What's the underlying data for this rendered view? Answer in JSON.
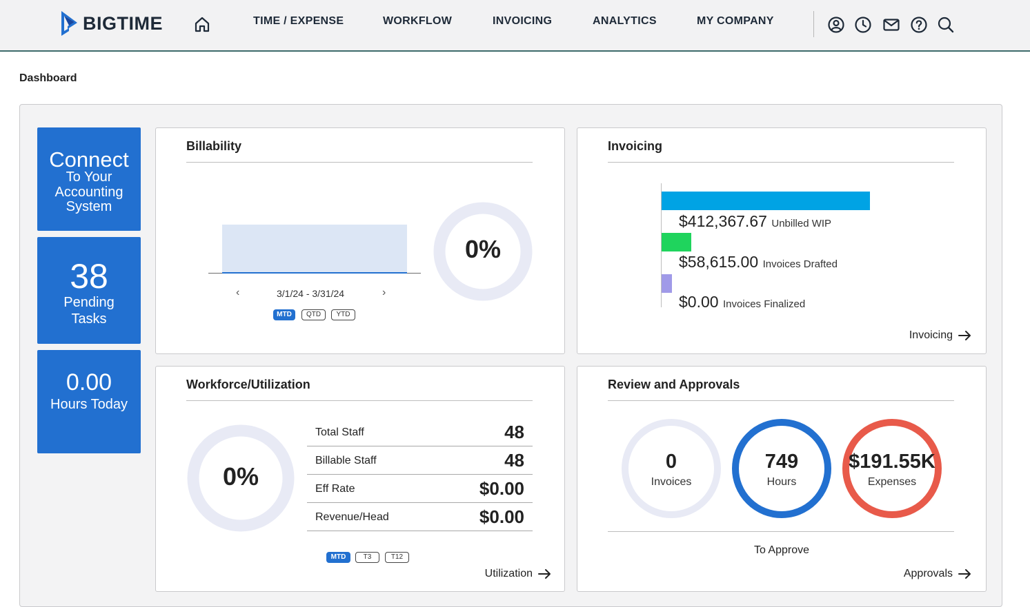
{
  "brand": {
    "name": "BIGTIME"
  },
  "nav": {
    "items": [
      "TIME / EXPENSE",
      "WORKFLOW",
      "INVOICING",
      "ANALYTICS",
      "MY COMPANY"
    ]
  },
  "page": {
    "title": "Dashboard"
  },
  "tiles": {
    "connect": {
      "big": "Connect",
      "line1": "To Your",
      "line2": "Accounting",
      "line3": "System"
    },
    "pending": {
      "count": "38",
      "line1": "Pending",
      "line2": "Tasks"
    },
    "hours": {
      "value": "0.00",
      "label": "Hours Today"
    }
  },
  "billability": {
    "title": "Billability",
    "percent": "0%",
    "date_range": "3/1/24 - 3/31/24",
    "periods": [
      "MTD",
      "QTD",
      "YTD"
    ],
    "active_period": "MTD"
  },
  "invoicing": {
    "title": "Invoicing",
    "bars": [
      {
        "amount": "$412,367.67",
        "label": "Unbilled WIP",
        "value": 412367.67,
        "color": "#00a3e4"
      },
      {
        "amount": "$58,615.00",
        "label": "Invoices Drafted",
        "value": 58615.0,
        "color": "#1fd45d"
      },
      {
        "amount": "$0.00",
        "label": "Invoices Finalized",
        "value": 0,
        "color": "#a09ae8"
      }
    ],
    "link": "Invoicing"
  },
  "workforce": {
    "title": "Workforce/Utilization",
    "percent": "0%",
    "stats": [
      {
        "label": "Total Staff",
        "value": "48"
      },
      {
        "label": "Billable Staff",
        "value": "48"
      },
      {
        "label": "Eff Rate",
        "value": "$0.00"
      },
      {
        "label": "Revenue/Head",
        "value": "$0.00"
      }
    ],
    "periods": [
      "MTD",
      "T3",
      "T12"
    ],
    "active_period": "MTD",
    "link": "Utilization"
  },
  "approvals": {
    "title": "Review and Approvals",
    "circles": [
      {
        "value": "0",
        "label": "Invoices",
        "color": "#e8eaf5"
      },
      {
        "value": "749",
        "label": "Hours",
        "color": "#2270d0"
      },
      {
        "value": "$191.55K",
        "label": "Expenses",
        "color": "#e85a4a"
      }
    ],
    "caption": "To Approve",
    "link": "Approvals"
  }
}
